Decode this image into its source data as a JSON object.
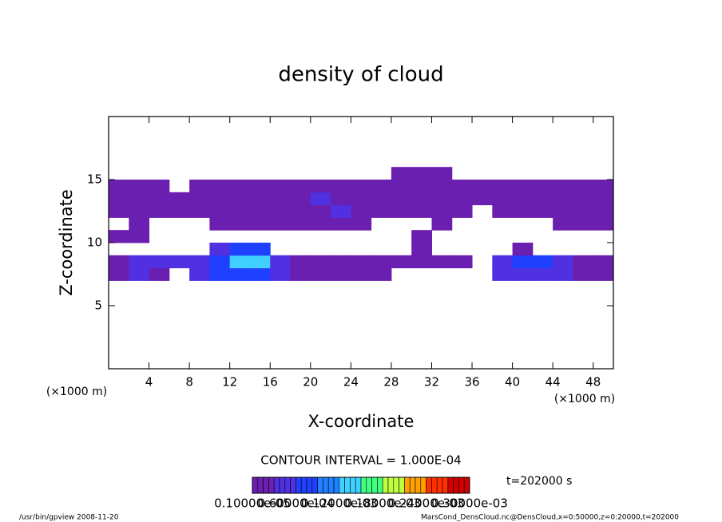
{
  "chart_data": {
    "type": "contour",
    "title": "density of cloud",
    "xlabel": "X-coordinate",
    "ylabel": "Z-coordinate",
    "xunit": "(×1000 m)",
    "yunit": "(×1000 m)",
    "xlim": [
      0,
      50
    ],
    "ylim": [
      0,
      20
    ],
    "xticks": [
      4,
      8,
      12,
      16,
      20,
      24,
      28,
      32,
      36,
      40,
      44,
      48
    ],
    "yticks": [
      5,
      10,
      15
    ],
    "x": [
      1,
      3,
      5,
      7,
      9,
      11,
      13,
      15,
      17,
      19,
      21,
      23,
      25,
      27,
      29,
      31,
      33,
      35,
      37,
      39,
      41,
      43,
      45,
      47,
      49
    ],
    "z": [
      7.5,
      8.5,
      9.5,
      10.5,
      11.5,
      12.5,
      13.5,
      14.5,
      15.5
    ],
    "values": [
      [
        1e-05,
        3e-05,
        1e-05,
        0,
        3e-05,
        6e-05,
        6e-05,
        6e-05,
        3e-05,
        1e-05,
        1e-05,
        1e-05,
        1e-05,
        1e-05,
        0,
        0,
        0,
        0,
        0,
        3e-05,
        3e-05,
        3e-05,
        3e-05,
        1e-05,
        1e-05
      ],
      [
        1e-05,
        3e-05,
        3e-05,
        3e-05,
        3e-05,
        6e-05,
        0.00012,
        0.00012,
        3e-05,
        1e-05,
        1e-05,
        1e-05,
        1e-05,
        1e-05,
        1e-05,
        1e-05,
        1e-05,
        1e-05,
        0,
        3e-05,
        6e-05,
        6e-05,
        3e-05,
        1e-05,
        1e-05
      ],
      [
        0,
        0,
        0,
        0,
        0,
        3e-05,
        6e-05,
        6e-05,
        0,
        0,
        0,
        0,
        0,
        0,
        0,
        1e-05,
        0,
        0,
        0,
        0,
        1e-05,
        0,
        0,
        0,
        0
      ],
      [
        1e-05,
        1e-05,
        0,
        0,
        0,
        0,
        0,
        0,
        0,
        0,
        0,
        0,
        0,
        0,
        0,
        1e-05,
        0,
        0,
        0,
        0,
        0,
        0,
        0,
        0,
        0
      ],
      [
        0,
        1e-05,
        0,
        0,
        0,
        1e-05,
        1e-05,
        1e-05,
        1e-05,
        1e-05,
        1e-05,
        1e-05,
        1e-05,
        0,
        0,
        0,
        1e-05,
        0,
        0,
        0,
        0,
        0,
        1e-05,
        1e-05,
        1e-05
      ],
      [
        1e-05,
        1e-05,
        1e-05,
        1e-05,
        1e-05,
        1e-05,
        1e-05,
        1e-05,
        1e-05,
        1e-05,
        1e-05,
        3e-05,
        1e-05,
        1e-05,
        1e-05,
        1e-05,
        1e-05,
        1e-05,
        0,
        1e-05,
        1e-05,
        1e-05,
        1e-05,
        1e-05,
        1e-05
      ],
      [
        1e-05,
        1e-05,
        1e-05,
        1e-05,
        1e-05,
        1e-05,
        1e-05,
        1e-05,
        1e-05,
        1e-05,
        3e-05,
        1e-05,
        1e-05,
        1e-05,
        1e-05,
        1e-05,
        1e-05,
        1e-05,
        1e-05,
        1e-05,
        1e-05,
        1e-05,
        1e-05,
        1e-05,
        1e-05
      ],
      [
        1e-05,
        1e-05,
        1e-05,
        0,
        1e-05,
        1e-05,
        1e-05,
        1e-05,
        1e-05,
        1e-05,
        1e-05,
        1e-05,
        1e-05,
        1e-05,
        1e-05,
        1e-05,
        1e-05,
        1e-05,
        1e-05,
        1e-05,
        1e-05,
        1e-05,
        1e-05,
        1e-05,
        1e-05
      ],
      [
        0,
        0,
        0,
        0,
        0,
        0,
        0,
        0,
        0,
        0,
        0,
        0,
        0,
        0,
        1e-05,
        1e-05,
        1e-05,
        0,
        0,
        0,
        0,
        0,
        0,
        0,
        0
      ]
    ],
    "colorlim": [
      0,
      0.0003
    ],
    "colormap": [
      "#6a1fb0",
      "#5030e0",
      "#2040ff",
      "#2080ff",
      "#40d0ff",
      "#40ff80",
      "#c0ff40",
      "#ffa000",
      "#ff3000",
      "#d00000"
    ],
    "contour_interval": "CONTOUR INTERVAL = 1.000E-04",
    "colorbar_labels": [
      "0.10000e-05",
      "0.60000e-04",
      "0.12000e-03",
      "0.18000e-03",
      "0.24000e-03",
      "0.30000e-03"
    ],
    "time": "t=202000 s",
    "footer_left": "/usr/bin/gpview   2008-11-20",
    "footer_right": "MarsCond_DensCloud.nc@DensCloud,x=0:50000,z=0:20000,t=202000"
  }
}
